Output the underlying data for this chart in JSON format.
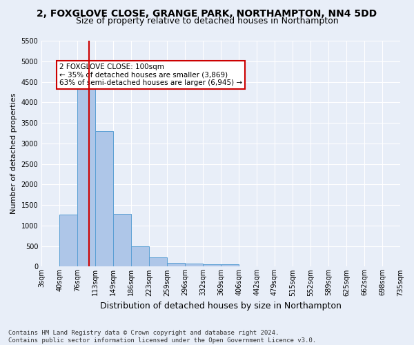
{
  "title_line1": "2, FOXGLOVE CLOSE, GRANGE PARK, NORTHAMPTON, NN4 5DD",
  "title_line2": "Size of property relative to detached houses in Northampton",
  "xlabel": "Distribution of detached houses by size in Northampton",
  "ylabel": "Number of detached properties",
  "footnote": "Contains HM Land Registry data © Crown copyright and database right 2024.\nContains public sector information licensed under the Open Government Licence v3.0.",
  "bin_labels": [
    "3sqm",
    "40sqm",
    "76sqm",
    "113sqm",
    "149sqm",
    "186sqm",
    "223sqm",
    "259sqm",
    "296sqm",
    "332sqm",
    "369sqm",
    "406sqm",
    "442sqm",
    "479sqm",
    "515sqm",
    "552sqm",
    "589sqm",
    "625sqm",
    "662sqm",
    "698sqm",
    "735sqm"
  ],
  "bar_values": [
    0,
    1270,
    4330,
    3300,
    1280,
    490,
    225,
    90,
    70,
    55,
    50,
    0,
    0,
    0,
    0,
    0,
    0,
    0,
    0,
    0
  ],
  "bar_color": "#aec6e8",
  "bar_edge_color": "#5a9fd4",
  "vline_color": "#cc0000",
  "annotation_text": "2 FOXGLOVE CLOSE: 100sqm\n← 35% of detached houses are smaller (3,869)\n63% of semi-detached houses are larger (6,945) →",
  "annotation_box_color": "#ffffff",
  "annotation_box_edge_color": "#cc0000",
  "ylim": [
    0,
    5500
  ],
  "yticks": [
    0,
    500,
    1000,
    1500,
    2000,
    2500,
    3000,
    3500,
    4000,
    4500,
    5000,
    5500
  ],
  "bg_color": "#e8eef8",
  "grid_color": "#ffffff",
  "title1_fontsize": 10,
  "title2_fontsize": 9,
  "ylabel_fontsize": 8,
  "xlabel_fontsize": 9,
  "tick_fontsize": 7,
  "annot_fontsize": 7.5,
  "footnote_fontsize": 6.5
}
